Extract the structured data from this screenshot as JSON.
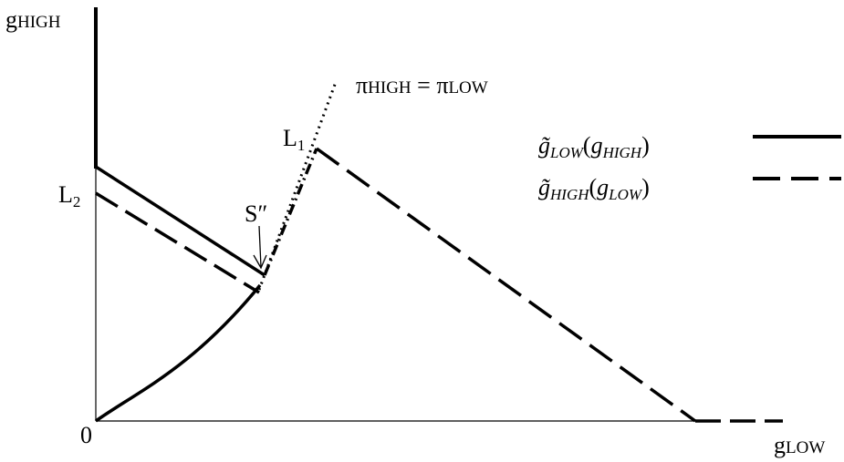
{
  "axes": {
    "y_label": {
      "base": "g",
      "sub": "HIGH"
    },
    "x_label": {
      "base": "g",
      "sub": "LOW"
    },
    "origin": "0"
  },
  "annotations": {
    "iso_profit": {
      "lhs": {
        "base": "π",
        "sub": "HIGH"
      },
      "eq": " = ",
      "rhs": {
        "base": "π",
        "sub": "LOW"
      }
    },
    "l1": {
      "base": "L",
      "sub": "1"
    },
    "l2": {
      "base": "L",
      "sub": "2"
    },
    "s": "S″"
  },
  "legend": [
    {
      "func": {
        "base": "g̃",
        "sub": "LOW"
      },
      "open": "(",
      "arg": {
        "base": "g",
        "sub": "HIGH"
      },
      "close": ")"
    },
    {
      "func": {
        "base": "g̃",
        "sub": "HIGH"
      },
      "open": "(",
      "arg": {
        "base": "g",
        "sub": "LOW"
      },
      "close": ")"
    }
  ]
}
